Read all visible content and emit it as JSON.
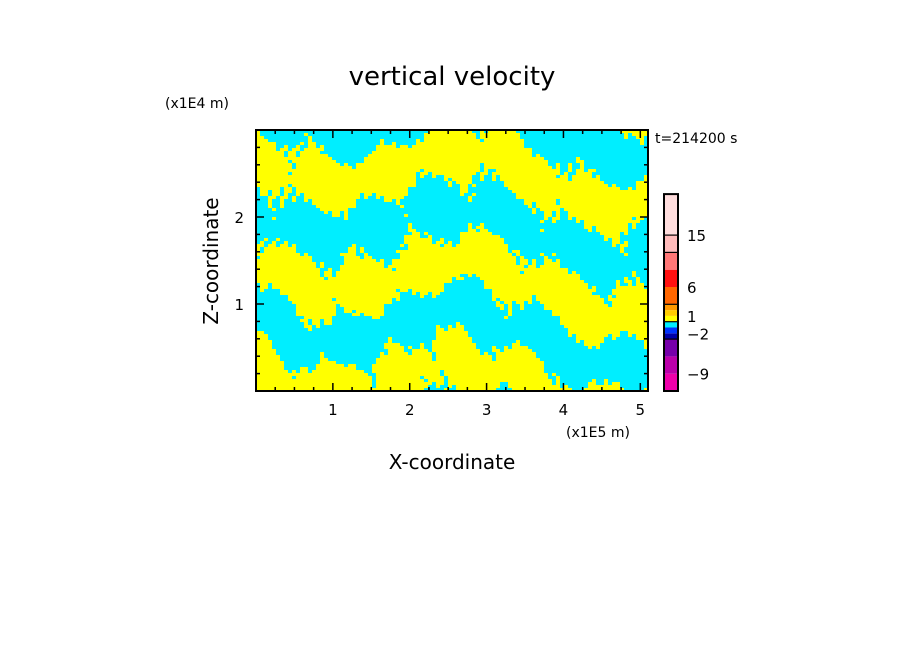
{
  "chart_data": {
    "type": "heatmap",
    "title": "vertical velocity",
    "xlabel": "X-coordinate",
    "ylabel": "Z-coordinate",
    "x_unit": "(x1E5 m)",
    "y_unit": "(x1E4 m)",
    "time_label": "t=214200 s",
    "xlim": [
      0,
      5.1
    ],
    "ylim": [
      0,
      3.0
    ],
    "x_ticks": [
      "1",
      "2",
      "3",
      "4",
      "5"
    ],
    "x_tick_values": [
      1,
      2,
      3,
      4,
      5
    ],
    "y_ticks": [
      "1",
      "2"
    ],
    "y_tick_values": [
      1,
      2
    ],
    "dominant_bands": {
      "positive": "0 to 1",
      "negative": "-1 to 0"
    },
    "colorbar": {
      "levels": [
        -12,
        -9,
        -6,
        -3,
        -2,
        -1,
        0,
        1,
        2,
        3,
        6,
        9,
        12,
        15,
        20
      ],
      "colors": [
        "#ee00aa",
        "#bb00aa",
        "#7700aa",
        "#0000aa",
        "#0033ff",
        "#00eeff",
        "#ffff00",
        "#ffcc00",
        "#ff9900",
        "#ff6600",
        "#ff1111",
        "#ff7777",
        "#ffbbbb",
        "#ffdddd"
      ],
      "tick_labels": [
        "15",
        "6",
        "1",
        "−2",
        "−9"
      ],
      "tick_values": [
        15,
        6,
        1,
        -2,
        -9
      ]
    }
  }
}
